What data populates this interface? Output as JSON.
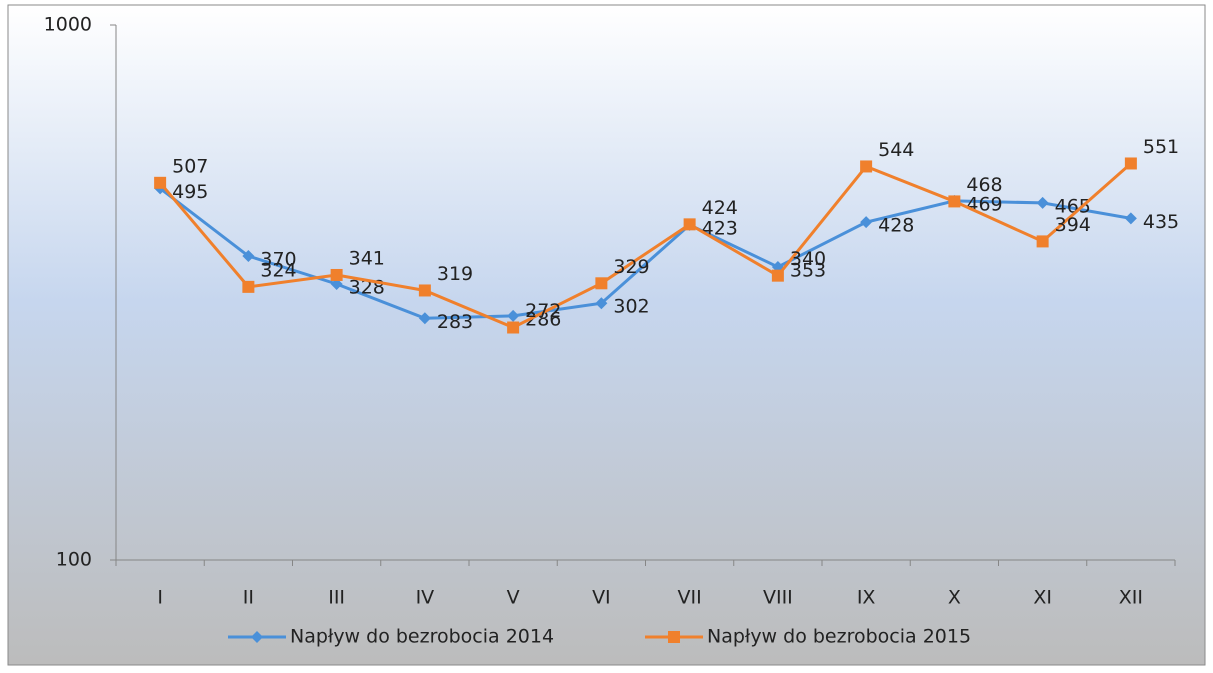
{
  "chart_data": {
    "type": "line",
    "categories": [
      "I",
      "II",
      "III",
      "IV",
      "V",
      "VI",
      "VII",
      "VIII",
      "IX",
      "X",
      "XI",
      "XII"
    ],
    "series": [
      {
        "name": "Napływ do bezrobocia 2014",
        "color": "#4a90d9",
        "marker": "diamond",
        "values": [
          495,
          370,
          328,
          283,
          286,
          302,
          423,
          353,
          428,
          469,
          465,
          435
        ]
      },
      {
        "name": "Napływ do bezrobocia 2015",
        "color": "#f0802c",
        "marker": "square",
        "values": [
          507,
          324,
          341,
          319,
          272,
          329,
          424,
          340,
          544,
          468,
          394,
          551
        ]
      }
    ],
    "ylim": [
      100,
      1000
    ],
    "yticks": [
      100,
      1000
    ],
    "log_scale": true,
    "grid": false,
    "legend": "bottom"
  }
}
